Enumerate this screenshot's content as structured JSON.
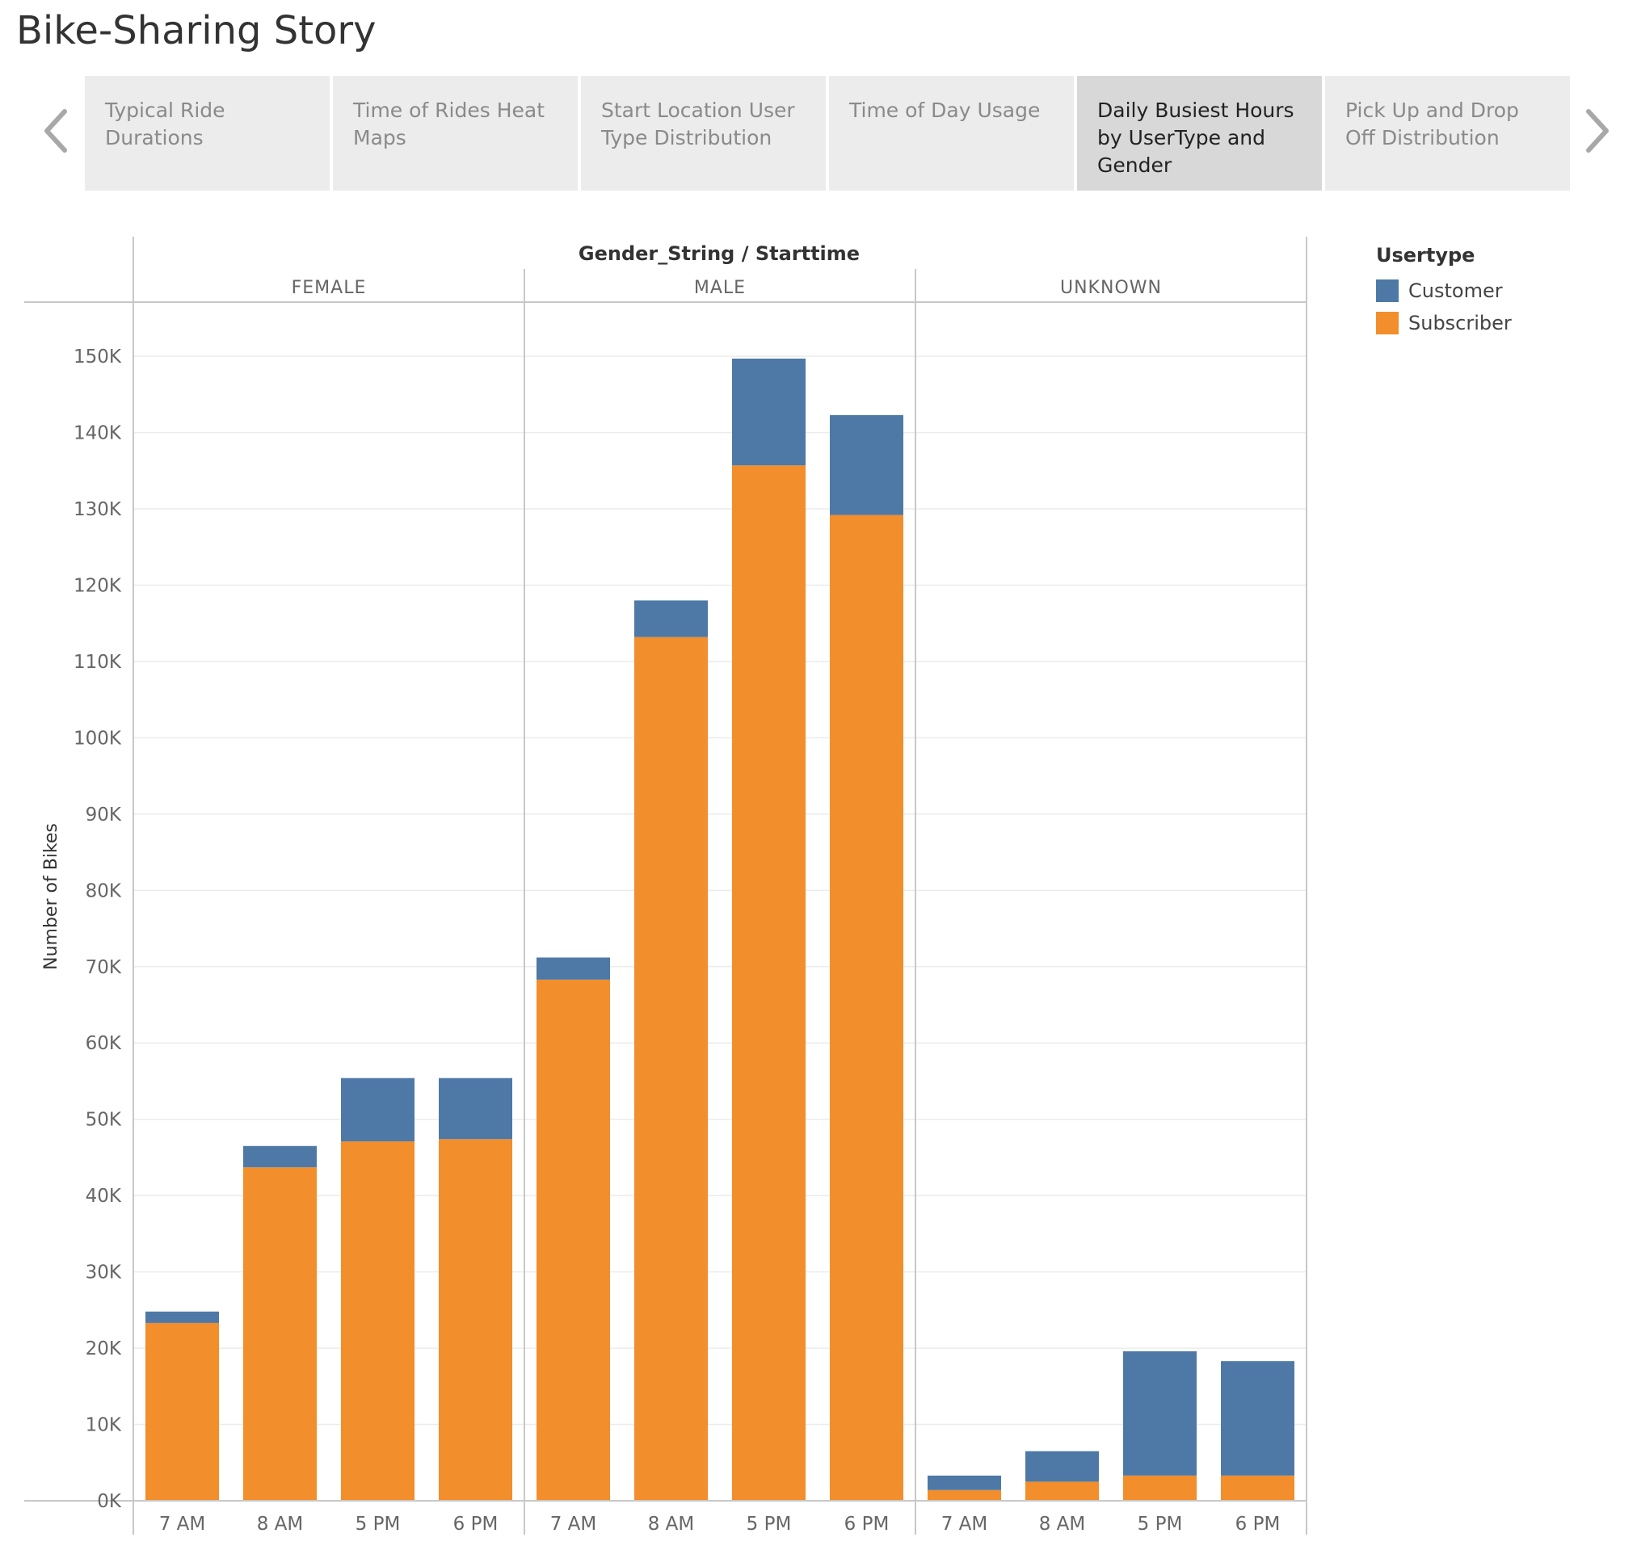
{
  "story": {
    "title": "Bike-Sharing Story"
  },
  "tabs": [
    {
      "label": "Typical Ride Durations",
      "active": false
    },
    {
      "label": "Time of Rides Heat Maps",
      "active": false
    },
    {
      "label": "Start Location User Type Distribution",
      "active": false
    },
    {
      "label": "Time of Day Usage",
      "active": false
    },
    {
      "label": "Daily Busiest Hours by UserType and Gender",
      "active": true
    },
    {
      "label": "Pick Up and Drop Off Distribution",
      "active": false
    }
  ],
  "icons": {
    "prev": "chevron-left-icon",
    "next": "chevron-right-icon"
  },
  "legend": {
    "title": "Usertype",
    "items": [
      {
        "label": "Customer",
        "color": "#4e79a7"
      },
      {
        "label": "Subscriber",
        "color": "#f28e2b"
      }
    ]
  },
  "chart_data": {
    "type": "bar",
    "stacked": true,
    "header": "Gender_String / Starttime",
    "ylabel": "Number of Bikes",
    "ylim": [
      0,
      157000
    ],
    "yticks": [
      0,
      10000,
      20000,
      30000,
      40000,
      50000,
      60000,
      70000,
      80000,
      90000,
      100000,
      110000,
      120000,
      130000,
      140000,
      150000
    ],
    "ytick_labels": [
      "0K",
      "10K",
      "20K",
      "30K",
      "40K",
      "50K",
      "60K",
      "70K",
      "80K",
      "90K",
      "100K",
      "110K",
      "120K",
      "130K",
      "140K",
      "150K"
    ],
    "grid": true,
    "legend_position": "right",
    "panels": [
      {
        "name": "FEMALE",
        "categories": [
          "7 AM",
          "8 AM",
          "5 PM",
          "6 PM"
        ],
        "series": [
          {
            "name": "Subscriber",
            "values": [
              23300,
              43700,
              47100,
              47400
            ]
          },
          {
            "name": "Customer",
            "values": [
              1500,
              2800,
              8300,
              8000
            ]
          }
        ]
      },
      {
        "name": "MALE",
        "categories": [
          "7 AM",
          "8 AM",
          "5 PM",
          "6 PM"
        ],
        "series": [
          {
            "name": "Subscriber",
            "values": [
              68300,
              113200,
              135700,
              129200
            ]
          },
          {
            "name": "Customer",
            "values": [
              2900,
              4800,
              14000,
              13100
            ]
          }
        ]
      },
      {
        "name": "UNKNOWN",
        "categories": [
          "7 AM",
          "8 AM",
          "5 PM",
          "6 PM"
        ],
        "series": [
          {
            "name": "Subscriber",
            "values": [
              1400,
              2500,
              3300,
              3300
            ]
          },
          {
            "name": "Customer",
            "values": [
              1900,
              4000,
              16300,
              15000
            ]
          }
        ]
      }
    ]
  }
}
